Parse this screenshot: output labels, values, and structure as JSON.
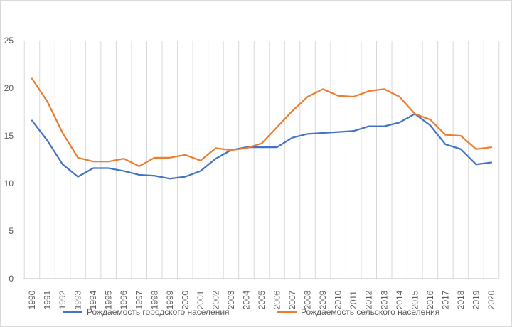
{
  "chart_data": {
    "type": "line",
    "title": "",
    "xlabel": "",
    "ylabel": "",
    "categories": [
      "1990",
      "1991",
      "1992",
      "1993",
      "1994",
      "1995",
      "1996",
      "1997",
      "1998",
      "1999",
      "2000",
      "2001",
      "2002",
      "2003",
      "2004",
      "2005",
      "2006",
      "2007",
      "2008",
      "2009",
      "2010",
      "2011",
      "2012",
      "2013",
      "2014",
      "2015",
      "2016",
      "2017",
      "2018",
      "2019",
      "2020"
    ],
    "ylim": [
      0,
      25
    ],
    "yticks": [
      0,
      5,
      10,
      15,
      20,
      25
    ],
    "grid": "vertical gridlines at each category",
    "legend_position": "bottom",
    "series": [
      {
        "name": "Рождаемость городского населения",
        "color": "#4472C4",
        "values": [
          16.6,
          14.5,
          12.0,
          10.7,
          11.6,
          11.6,
          11.3,
          10.9,
          10.8,
          10.5,
          10.7,
          11.3,
          12.6,
          13.5,
          13.8,
          13.8,
          13.8,
          14.8,
          15.2,
          15.3,
          15.4,
          15.5,
          16.0,
          16.0,
          16.4,
          17.3,
          16.1,
          14.1,
          13.6,
          12.0,
          12.2
        ]
      },
      {
        "name": "Рождаемость сельского населения",
        "color": "#ED7D31",
        "values": [
          21.0,
          18.6,
          15.3,
          12.7,
          12.3,
          12.3,
          12.6,
          11.8,
          12.7,
          12.7,
          13.0,
          12.4,
          13.7,
          13.5,
          13.7,
          14.2,
          15.9,
          17.6,
          19.1,
          19.9,
          19.2,
          19.1,
          19.7,
          19.9,
          19.1,
          17.3,
          16.7,
          15.1,
          15.0,
          13.6,
          13.8
        ]
      }
    ]
  }
}
